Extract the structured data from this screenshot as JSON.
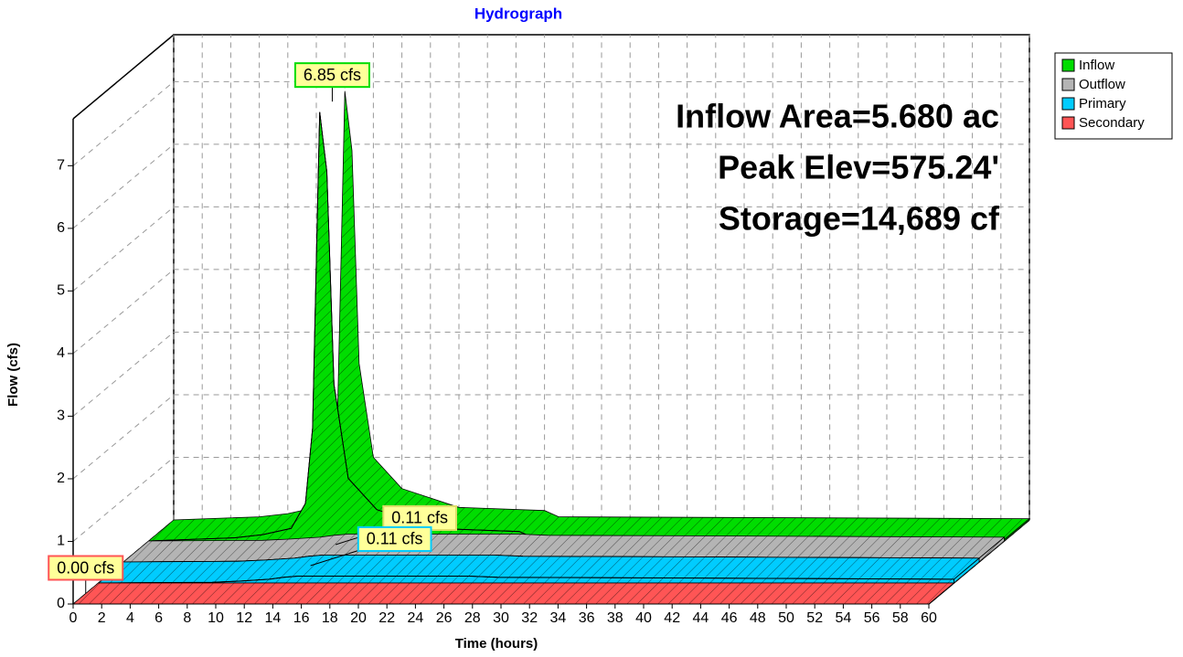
{
  "chart_data": {
    "type": "area-3d",
    "title": "Hydrograph",
    "x_label": "Time  (hours)",
    "y_label": "Flow  (cfs)",
    "xlim": [
      0,
      60
    ],
    "xticks": [
      0,
      2,
      4,
      6,
      8,
      10,
      12,
      14,
      16,
      18,
      20,
      22,
      24,
      26,
      28,
      30,
      32,
      34,
      36,
      38,
      40,
      42,
      44,
      46,
      48,
      50,
      52,
      54,
      56,
      58,
      60
    ],
    "ylim": [
      0,
      7.75
    ],
    "yticks": [
      0,
      1,
      2,
      3,
      4,
      5,
      6,
      7
    ],
    "grid": true,
    "legend": "outside-right",
    "annotations": [
      "Inflow Area=5.680 ac",
      "Peak Elev=575.24'",
      "Storage=14,689 cf"
    ],
    "series": [
      {
        "name": "Inflow",
        "color": "#00dd00",
        "x": [
          0,
          6,
          8,
          10,
          11,
          11.5,
          12,
          12.5,
          13,
          14,
          16,
          20,
          26,
          27,
          60
        ],
        "values": [
          0,
          0.05,
          0.1,
          0.2,
          0.6,
          1.8,
          6.85,
          5.9,
          2.5,
          1.0,
          0.5,
          0.2,
          0.15,
          0.05,
          0.02
        ],
        "peak": {
          "value": 6.85,
          "label": "6.85 cfs"
        }
      },
      {
        "name": "Outflow",
        "color": "#b4b4b4",
        "x": [
          0,
          8,
          10,
          12,
          13,
          14,
          16,
          26,
          28,
          40,
          60
        ],
        "values": [
          0,
          0.01,
          0.03,
          0.06,
          0.09,
          0.11,
          0.11,
          0.11,
          0.09,
          0.08,
          0.06
        ],
        "peak": {
          "value": 0.11,
          "label": "0.11 cfs"
        }
      },
      {
        "name": "Primary",
        "color": "#00ccff",
        "x": [
          0,
          8,
          10,
          12,
          13,
          14,
          16,
          26,
          28,
          40,
          60
        ],
        "values": [
          0,
          0.01,
          0.03,
          0.06,
          0.09,
          0.11,
          0.11,
          0.11,
          0.09,
          0.08,
          0.06
        ],
        "peak": {
          "value": 0.11,
          "label": "0.11 cfs"
        }
      },
      {
        "name": "Secondary",
        "color": "#ff5555",
        "x": [
          0,
          60
        ],
        "values": [
          0,
          0
        ],
        "peak": {
          "value": 0,
          "label": "0.00 cfs"
        }
      }
    ]
  }
}
